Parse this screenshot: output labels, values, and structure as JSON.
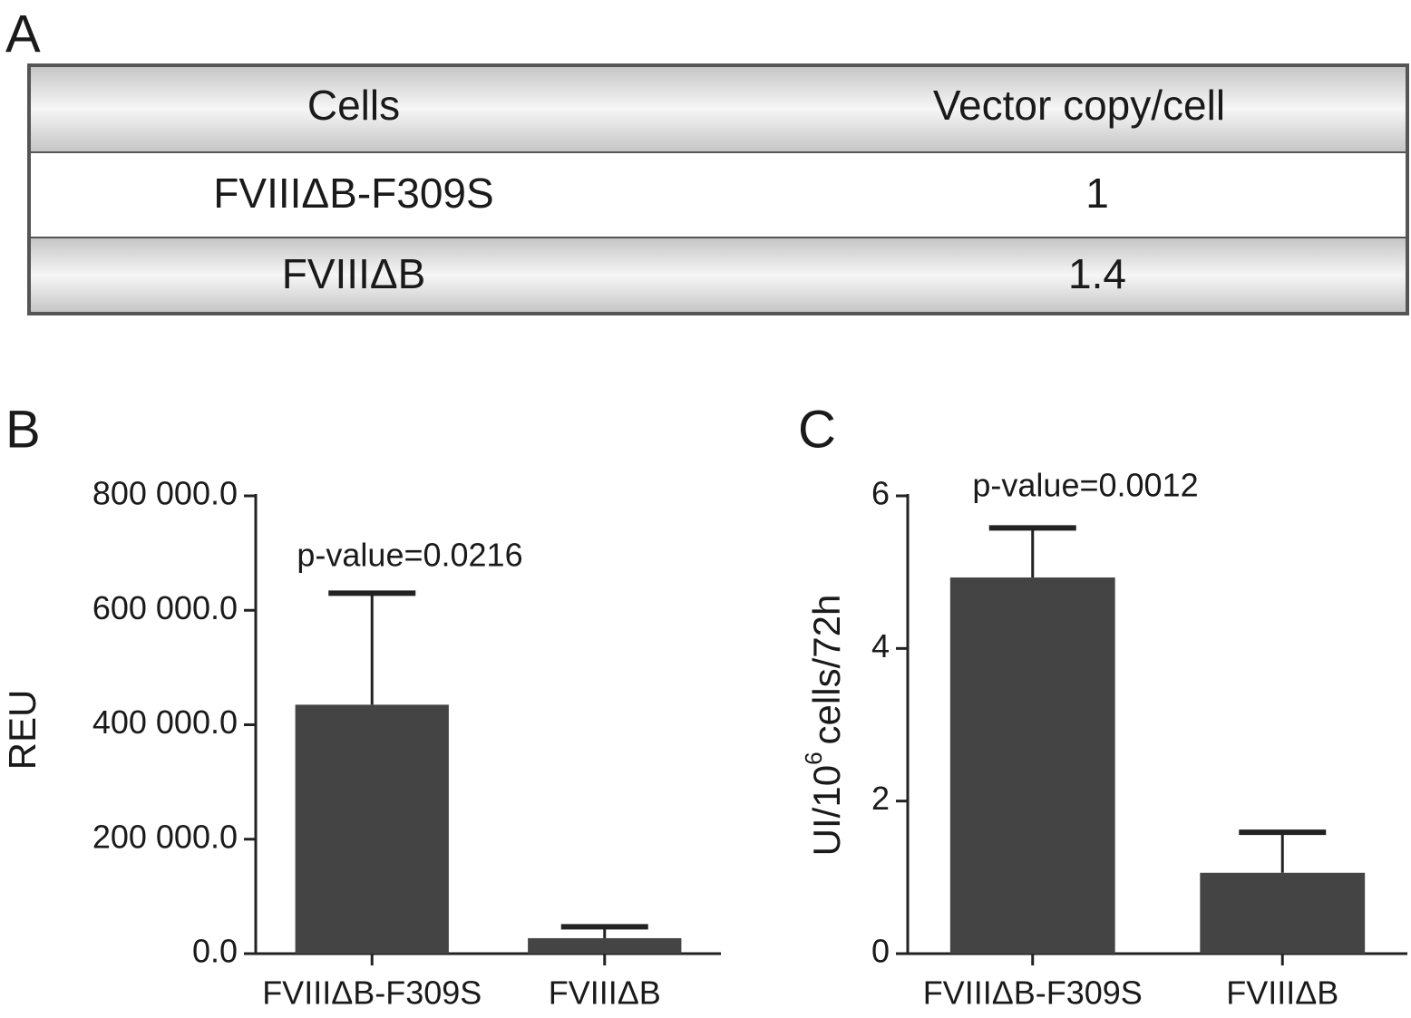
{
  "table": {
    "label": "A",
    "header": [
      "Cells",
      "Vector copy/cell"
    ],
    "rows": [
      [
        "FVIIIΔB-F309S",
        "1"
      ],
      [
        "FVIIIΔB",
        "1.4"
      ]
    ]
  },
  "chart_data": [
    {
      "type": "bar",
      "label": "B",
      "ylabel": [
        "REU"
      ],
      "categories": [
        "FVIIIΔB-F309S",
        "FVIIIΔB"
      ],
      "values": [
        435000,
        27000
      ],
      "errors": [
        195000,
        20000
      ],
      "color": "#444444",
      "annotation": "p-value=0.0216",
      "ylim": [
        0,
        800000
      ],
      "yticks": [
        {
          "value": 0,
          "label": "0.0"
        },
        {
          "value": 200000,
          "label": "200 000.0"
        },
        {
          "value": 400000,
          "label": "400 000.0"
        },
        {
          "value": 600000,
          "label": "600 000.0"
        },
        {
          "value": 800000,
          "label": "800 000.0"
        }
      ]
    },
    {
      "type": "bar",
      "label": "C",
      "ylabel": [
        "UI/10",
        "6",
        "cells/72h"
      ],
      "categories": [
        "FVIIIΔB-F309S",
        "FVIIIΔB"
      ],
      "values": [
        4.93,
        1.06
      ],
      "errors": [
        0.65,
        0.53
      ],
      "color": "#444444",
      "annotation": "p-value=0.0012",
      "ylim": [
        0,
        6
      ],
      "yticks": [
        0,
        2,
        4,
        6
      ]
    }
  ]
}
